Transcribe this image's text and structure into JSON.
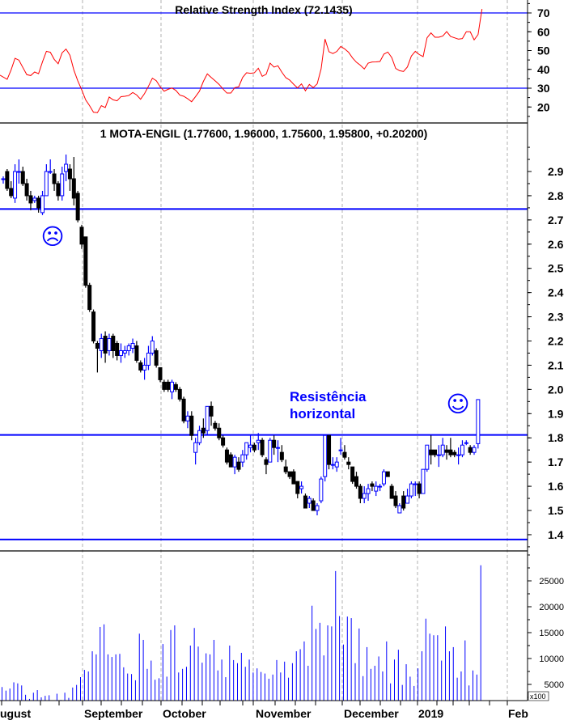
{
  "colors": {
    "up": "#0000ff",
    "down": "#000000",
    "rsi": "#ff0000",
    "level_lines": "#0000ff",
    "volume": "#0000ff",
    "grid": "#b0b0b0"
  },
  "chart_data": [
    {
      "type": "line",
      "title": "Relative Strength Index (72.1435)",
      "ylim": [
        12,
        75
      ],
      "y_ticks": [
        "70",
        "60",
        "50",
        "40",
        "30",
        "20"
      ],
      "reference_lines": [
        70,
        30
      ],
      "values": [
        36.9,
        34.7,
        39.7,
        45.9,
        44.9,
        41.0,
        37.2,
        36.7,
        38.6,
        37.7,
        44.0,
        49.6,
        49.1,
        45.3,
        43.0,
        48.8,
        50.8,
        47.5,
        39.6,
        33.9,
        29.1,
        23.8,
        20.7,
        17.2,
        17.0,
        20.7,
        19.7,
        25.3,
        23.8,
        23.3,
        25.5,
        25.7,
        26.1,
        27.7,
        26.4,
        24.1,
        27.1,
        31.0,
        35.3,
        34.0,
        30.7,
        28.4,
        29.4,
        30.1,
        28.8,
        26.3,
        25.7,
        24.4,
        22.8,
        25.5,
        28.4,
        33.6,
        37.6,
        35.7,
        33.9,
        32.0,
        29.6,
        27.4,
        27.4,
        30.3,
        30.7,
        35.7,
        38.2,
        37.9,
        38.2,
        40.6,
        36.3,
        37.4,
        43.3,
        41.2,
        41.9,
        38.5,
        35.6,
        34.3,
        32.1,
        30.1,
        32.3,
        28.6,
        32.0,
        30.3,
        32.3,
        40.2,
        56.1,
        49.4,
        48.4,
        49.5,
        52.2,
        50.9,
        49.1,
        46.1,
        43.8,
        42.2,
        40.2,
        43.3,
        43.9,
        44.0,
        44.2,
        48.1,
        49.2,
        46.3,
        40.5,
        39.3,
        38.9,
        41.3,
        47.1,
        49.6,
        47.9,
        46.8,
        56.8,
        59.4,
        57.1,
        57.1,
        57.7,
        60.1,
        57.5,
        56.8,
        56.1,
        56.4,
        60.0,
        60.0,
        55.7,
        58.5,
        72.1
      ]
    },
    {
      "type": "candlestick",
      "title": "1 MOTA-ENGIL (1.77600, 1.96000, 1.75600, 1.95800, +0.20200)",
      "ylim": [
        1.35,
        3.05
      ],
      "y_ticks": [
        "2.9",
        "2.8",
        "2.7",
        "2.6",
        "2.5",
        "2.4",
        "2.3",
        "2.2",
        "2.1",
        "2.0",
        "1.9",
        "1.8",
        "1.7",
        "1.6",
        "1.5",
        "1.4"
      ],
      "horizontal_lines": [
        2.745,
        1.812,
        1.38
      ],
      "annotations": {
        "resistance_line1": "Resistência",
        "resistance_line2": "horizontal",
        "sad_face": "☹",
        "smiley_face": "☺"
      },
      "ohlc": [
        [
          2.87,
          2.88,
          2.85,
          2.87
        ],
        [
          2.9,
          2.91,
          2.82,
          2.83
        ],
        [
          2.83,
          2.86,
          2.79,
          2.8
        ],
        [
          2.79,
          2.93,
          2.77,
          2.9
        ],
        [
          2.9,
          2.95,
          2.85,
          2.9
        ],
        [
          2.9,
          2.92,
          2.84,
          2.85
        ],
        [
          2.85,
          2.87,
          2.78,
          2.8
        ],
        [
          2.8,
          2.82,
          2.74,
          2.77
        ],
        [
          2.78,
          2.8,
          2.77,
          2.79
        ],
        [
          2.79,
          2.8,
          2.73,
          2.75
        ],
        [
          2.73,
          2.82,
          2.72,
          2.8
        ],
        [
          2.8,
          2.93,
          2.8,
          2.9
        ],
        [
          2.9,
          2.95,
          2.89,
          2.9
        ],
        [
          2.89,
          2.91,
          2.82,
          2.85
        ],
        [
          2.85,
          2.86,
          2.78,
          2.8
        ],
        [
          2.8,
          2.92,
          2.78,
          2.89
        ],
        [
          2.9,
          2.97,
          2.86,
          2.93
        ],
        [
          2.91,
          2.93,
          2.82,
          2.87
        ],
        [
          2.87,
          2.96,
          2.76,
          2.79
        ],
        [
          2.81,
          2.82,
          2.69,
          2.7
        ],
        [
          2.67,
          2.68,
          2.58,
          2.6
        ],
        [
          2.63,
          2.63,
          2.42,
          2.43
        ],
        [
          2.43,
          2.44,
          2.32,
          2.33
        ],
        [
          2.32,
          2.33,
          2.19,
          2.2
        ],
        [
          2.19,
          2.2,
          2.07,
          2.17
        ],
        [
          2.16,
          2.23,
          2.13,
          2.21
        ],
        [
          2.22,
          2.24,
          2.11,
          2.15
        ],
        [
          2.16,
          2.23,
          2.14,
          2.21
        ],
        [
          2.22,
          2.23,
          2.13,
          2.16
        ],
        [
          2.19,
          2.2,
          2.12,
          2.14
        ],
        [
          2.14,
          2.19,
          2.11,
          2.16
        ],
        [
          2.15,
          2.18,
          2.13,
          2.16
        ],
        [
          2.16,
          2.19,
          2.14,
          2.18
        ],
        [
          2.17,
          2.21,
          2.15,
          2.19
        ],
        [
          2.18,
          2.2,
          2.11,
          2.12
        ],
        [
          2.11,
          2.12,
          2.07,
          2.08
        ],
        [
          2.08,
          2.13,
          2.04,
          2.1
        ],
        [
          2.1,
          2.18,
          2.08,
          2.15
        ],
        [
          2.15,
          2.22,
          2.14,
          2.2
        ],
        [
          2.16,
          2.17,
          2.09,
          2.1
        ],
        [
          2.09,
          2.09,
          2.03,
          2.04
        ],
        [
          2.03,
          2.04,
          1.99,
          2.0
        ],
        [
          2.03,
          2.04,
          1.99,
          2.0
        ],
        [
          1.99,
          2.04,
          1.96,
          2.03
        ],
        [
          2.02,
          2.03,
          1.99,
          2.0
        ],
        [
          2.0,
          2.01,
          1.95,
          1.96
        ],
        [
          1.96,
          1.97,
          1.86,
          1.87
        ],
        [
          1.87,
          1.91,
          1.84,
          1.89
        ],
        [
          1.89,
          1.91,
          1.79,
          1.81
        ],
        [
          1.74,
          1.8,
          1.69,
          1.78
        ],
        [
          1.78,
          1.85,
          1.77,
          1.83
        ],
        [
          1.84,
          1.88,
          1.8,
          1.82
        ],
        [
          1.83,
          1.93,
          1.81,
          1.93
        ],
        [
          1.93,
          1.95,
          1.85,
          1.89
        ],
        [
          1.86,
          1.87,
          1.83,
          1.84
        ],
        [
          1.84,
          1.86,
          1.79,
          1.8
        ],
        [
          1.8,
          1.81,
          1.76,
          1.77
        ],
        [
          1.75,
          1.76,
          1.69,
          1.7
        ],
        [
          1.73,
          1.74,
          1.68,
          1.68
        ],
        [
          1.68,
          1.73,
          1.65,
          1.72
        ],
        [
          1.7,
          1.72,
          1.66,
          1.67
        ],
        [
          1.7,
          1.75,
          1.68,
          1.73
        ],
        [
          1.73,
          1.78,
          1.71,
          1.78
        ],
        [
          1.76,
          1.81,
          1.74,
          1.77
        ],
        [
          1.77,
          1.78,
          1.74,
          1.75
        ],
        [
          1.78,
          1.82,
          1.75,
          1.79
        ],
        [
          1.79,
          1.8,
          1.72,
          1.73
        ],
        [
          1.71,
          1.72,
          1.65,
          1.69
        ],
        [
          1.7,
          1.8,
          1.7,
          1.79
        ],
        [
          1.79,
          1.81,
          1.73,
          1.76
        ],
        [
          1.76,
          1.79,
          1.7,
          1.76
        ],
        [
          1.74,
          1.77,
          1.7,
          1.71
        ],
        [
          1.68,
          1.71,
          1.65,
          1.66
        ],
        [
          1.66,
          1.66,
          1.63,
          1.64
        ],
        [
          1.66,
          1.67,
          1.61,
          1.61
        ],
        [
          1.62,
          1.62,
          1.55,
          1.57
        ],
        [
          1.59,
          1.62,
          1.57,
          1.6
        ],
        [
          1.56,
          1.57,
          1.51,
          1.51
        ],
        [
          1.53,
          1.56,
          1.51,
          1.55
        ],
        [
          1.54,
          1.55,
          1.5,
          1.5
        ],
        [
          1.5,
          1.53,
          1.48,
          1.52
        ],
        [
          1.54,
          1.64,
          1.53,
          1.63
        ],
        [
          1.64,
          1.81,
          1.62,
          1.81
        ],
        [
          1.81,
          1.81,
          1.67,
          1.69
        ],
        [
          1.69,
          1.72,
          1.67,
          1.69
        ],
        [
          1.68,
          1.72,
          1.66,
          1.7
        ],
        [
          1.75,
          1.8,
          1.73,
          1.75
        ],
        [
          1.74,
          1.77,
          1.71,
          1.72
        ],
        [
          1.7,
          1.72,
          1.67,
          1.69
        ],
        [
          1.68,
          1.68,
          1.61,
          1.62
        ],
        [
          1.64,
          1.66,
          1.59,
          1.6
        ],
        [
          1.6,
          1.61,
          1.53,
          1.55
        ],
        [
          1.55,
          1.6,
          1.53,
          1.57
        ],
        [
          1.57,
          1.61,
          1.54,
          1.59
        ],
        [
          1.61,
          1.62,
          1.58,
          1.6
        ],
        [
          1.58,
          1.62,
          1.56,
          1.6
        ],
        [
          1.6,
          1.61,
          1.58,
          1.6
        ],
        [
          1.61,
          1.67,
          1.6,
          1.66
        ],
        [
          1.66,
          1.66,
          1.64,
          1.64
        ],
        [
          1.6,
          1.61,
          1.55,
          1.55
        ],
        [
          1.56,
          1.58,
          1.51,
          1.52
        ],
        [
          1.49,
          1.53,
          1.49,
          1.52
        ],
        [
          1.56,
          1.58,
          1.5,
          1.51
        ],
        [
          1.53,
          1.59,
          1.53,
          1.56
        ],
        [
          1.56,
          1.62,
          1.55,
          1.61
        ],
        [
          1.61,
          1.62,
          1.56,
          1.61
        ],
        [
          1.61,
          1.62,
          1.55,
          1.57
        ],
        [
          1.57,
          1.67,
          1.57,
          1.67
        ],
        [
          1.67,
          1.77,
          1.66,
          1.77
        ],
        [
          1.75,
          1.81,
          1.69,
          1.73
        ],
        [
          1.75,
          1.75,
          1.72,
          1.73
        ],
        [
          1.73,
          1.77,
          1.68,
          1.73
        ],
        [
          1.73,
          1.8,
          1.72,
          1.77
        ],
        [
          1.75,
          1.77,
          1.71,
          1.74
        ],
        [
          1.75,
          1.8,
          1.72,
          1.73
        ],
        [
          1.74,
          1.75,
          1.72,
          1.73
        ],
        [
          1.73,
          1.76,
          1.69,
          1.73
        ],
        [
          1.73,
          1.79,
          1.72,
          1.77
        ],
        [
          1.78,
          1.79,
          1.77,
          1.78
        ],
        [
          1.76,
          1.77,
          1.73,
          1.74
        ],
        [
          1.74,
          1.77,
          1.73,
          1.76
        ],
        [
          1.776,
          1.96,
          1.756,
          1.958
        ]
      ]
    },
    {
      "type": "bar",
      "ylim": [
        0,
        29000
      ],
      "y_ticks": [
        "25000",
        "20000",
        "15000",
        "10000",
        "5000"
      ],
      "unit_label": "x100",
      "values": [
        4500,
        3800,
        4200,
        5400,
        5200,
        4800,
        3000,
        2200,
        3400,
        3900,
        2500,
        2800,
        2900,
        1800,
        3200,
        2000,
        3400,
        2400,
        4400,
        4900,
        6400,
        7800,
        7500,
        11400,
        10800,
        16100,
        16600,
        10800,
        10300,
        10800,
        10900,
        8300,
        7100,
        7000,
        5800,
        14800,
        13600,
        8000,
        9600,
        5900,
        6200,
        12800,
        6500,
        15500,
        16400,
        7300,
        8000,
        8400,
        12500,
        15900,
        12300,
        9200,
        11000,
        10800,
        13600,
        7700,
        9800,
        6400,
        12500,
        9700,
        9100,
        11100,
        8400,
        9800,
        7300,
        8100,
        7400,
        7100,
        6100,
        6900,
        9700,
        7300,
        9400,
        6300,
        9100,
        11400,
        11800,
        13300,
        8600,
        20200,
        15700,
        16900,
        10600,
        16400,
        16200,
        26900,
        18200,
        12700,
        18100,
        17800,
        9100,
        15800,
        6600,
        12200,
        8000,
        8600,
        10400,
        7500,
        13300,
        5200,
        9800,
        11700,
        4900,
        8900,
        6500,
        4700,
        8100,
        11400,
        17700,
        14800,
        14500,
        14500,
        9600,
        16200,
        11400,
        12200,
        6300,
        7500,
        13500,
        4800,
        7700,
        6900,
        28000
      ]
    }
  ],
  "x_axis": {
    "months": [
      "ugust",
      "September",
      "October",
      "November",
      "December",
      "2019",
      "Feb"
    ]
  }
}
